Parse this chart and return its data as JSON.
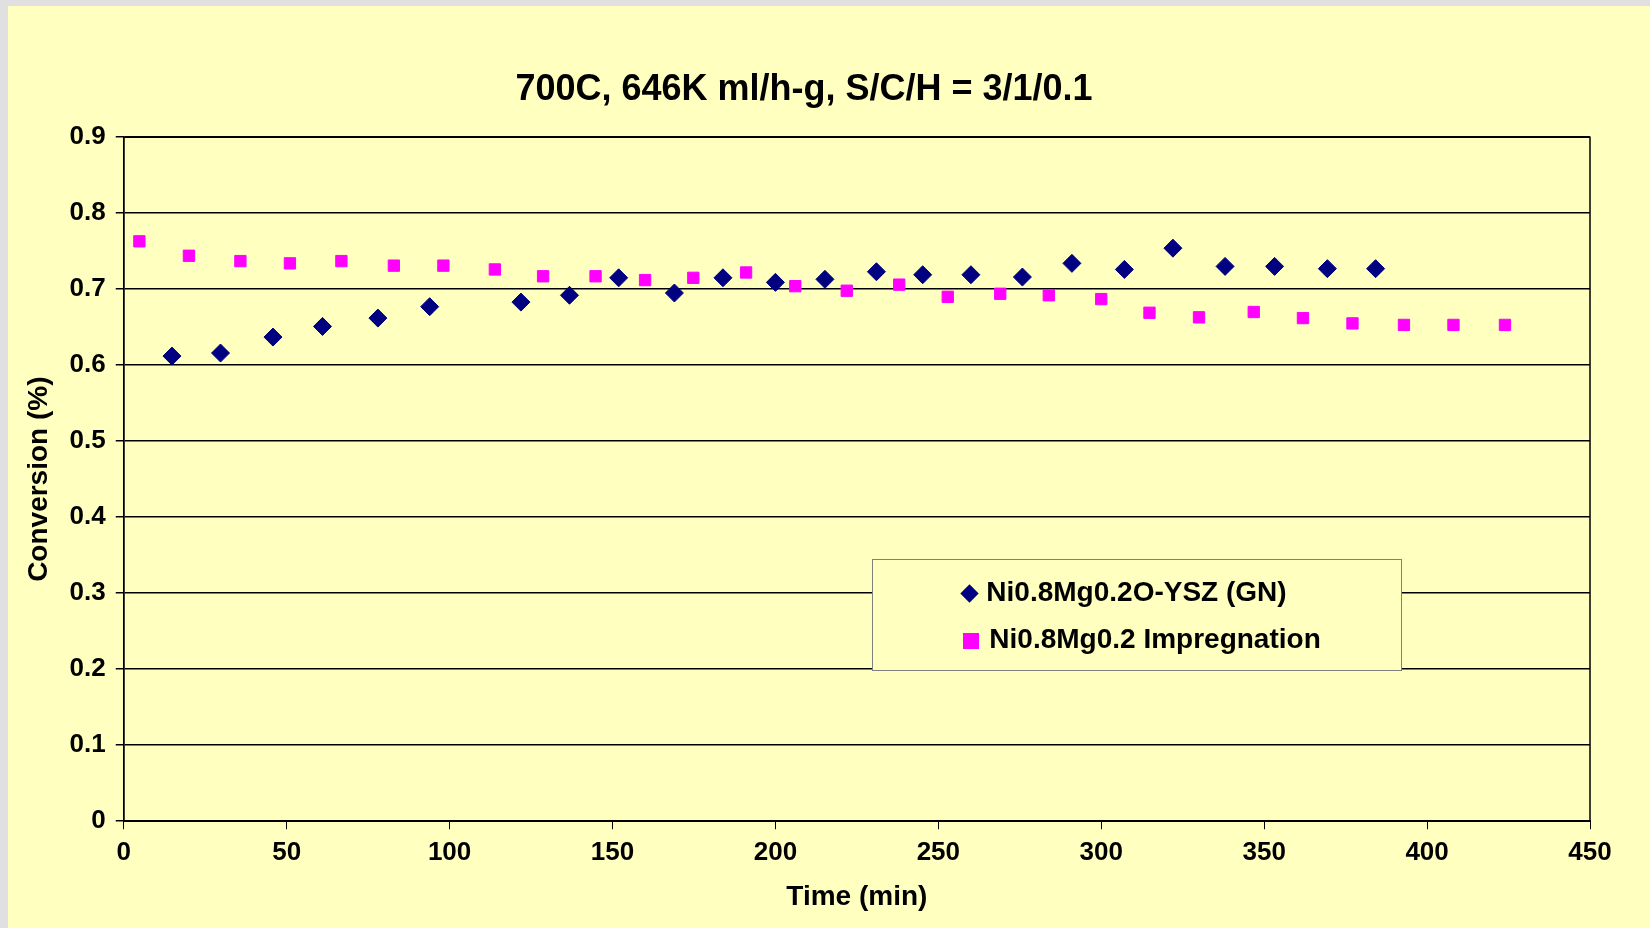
{
  "chart_data": {
    "type": "scatter",
    "title": "700C, 646K ml/h-g, S/C/H = 3/1/0.1",
    "xlabel": "Time (min)",
    "ylabel": "Conversion (%)",
    "xlim": [
      0,
      450
    ],
    "xticks": [
      0,
      50,
      100,
      150,
      200,
      250,
      300,
      350,
      400,
      450
    ],
    "ylim": [
      0,
      0.9
    ],
    "yticks": [
      0,
      0.1,
      0.2,
      0.3,
      0.4,
      0.5,
      0.6,
      0.7,
      0.8,
      0.9
    ],
    "grid": "y",
    "legend": "bottom right",
    "series": [
      {
        "name": "Ni0.8Mg0.2O-YSZ (GN)",
        "color": "#000080",
        "marker": "diamond",
        "x": [
          14.8,
          29.7,
          45.8,
          61,
          78,
          93.9,
          121.9,
          136.8,
          151.9,
          169,
          183.9,
          200,
          215.2,
          231,
          245.2,
          260,
          275.8,
          291,
          307.1,
          322,
          338,
          353.2,
          369.4,
          384.2
        ],
        "values": [
          0.612,
          0.616,
          0.637,
          0.651,
          0.662,
          0.677,
          0.683,
          0.692,
          0.715,
          0.695,
          0.715,
          0.709,
          0.713,
          0.723,
          0.719,
          0.719,
          0.716,
          0.734,
          0.726,
          0.754,
          0.73,
          0.73,
          0.727,
          0.727
        ]
      },
      {
        "name": "Ni0.8Mg0.2 Impregnation",
        "color": "#ff00ff",
        "marker": "square",
        "x": [
          4.8,
          20,
          35.8,
          51,
          66.8,
          82.9,
          98.1,
          113.9,
          128.7,
          144.8,
          160,
          174.8,
          191,
          206.1,
          221.9,
          238,
          252.9,
          269,
          283.9,
          300,
          314.8,
          330,
          346.8,
          361.9,
          377.1,
          392.9,
          408.1,
          423.9
        ],
        "values": [
          0.763,
          0.744,
          0.737,
          0.734,
          0.737,
          0.731,
          0.731,
          0.726,
          0.717,
          0.717,
          0.712,
          0.715,
          0.722,
          0.704,
          0.698,
          0.706,
          0.69,
          0.694,
          0.692,
          0.687,
          0.669,
          0.663,
          0.67,
          0.662,
          0.655,
          0.653,
          0.653,
          0.653
        ]
      }
    ]
  }
}
